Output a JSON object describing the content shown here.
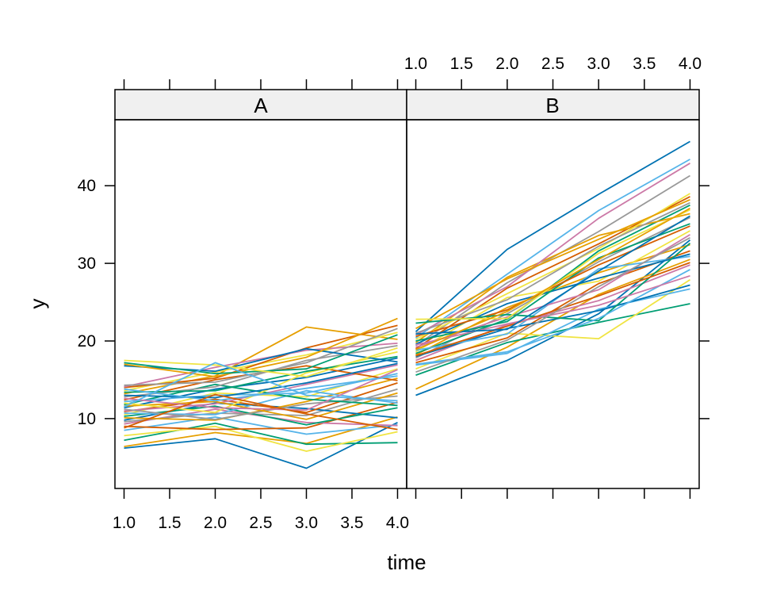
{
  "chart_data": {
    "type": "line",
    "layout": "lattice-panels",
    "xlabel": "time",
    "ylabel": "y",
    "xlim": [
      0.9,
      4.1
    ],
    "ylim": [
      1.0,
      48.5
    ],
    "x": [
      1,
      2,
      3,
      4
    ],
    "x_ticks": [
      1.0,
      1.5,
      2.0,
      2.5,
      3.0,
      3.5,
      4.0
    ],
    "x_tick_labels": [
      "1.0",
      "1.5",
      "2.0",
      "2.5",
      "3.0",
      "3.5",
      "4.0"
    ],
    "y_ticks": [
      10,
      20,
      30,
      40
    ],
    "y_tick_labels": [
      "10",
      "20",
      "30",
      "40"
    ],
    "palette": [
      "#0072B2",
      "#E69F00",
      "#009E73",
      "#F0E442",
      "#56B4E9",
      "#D55E00",
      "#CC79A7",
      "#999999"
    ],
    "panels": [
      {
        "name": "A",
        "strip_label": "A",
        "series": [
          {
            "values": [
              6.2,
              7.4,
              3.6,
              9.5
            ]
          },
          {
            "values": [
              6.4,
              8.2,
              6.8,
              10.2
            ]
          },
          {
            "values": [
              7.2,
              9.4,
              6.7,
              6.9
            ]
          },
          {
            "values": [
              7.8,
              9.0,
              5.8,
              8.3
            ]
          },
          {
            "values": [
              8.5,
              10.2,
              8.0,
              9.2
            ]
          },
          {
            "values": [
              9.0,
              8.6,
              8.8,
              12.1
            ]
          },
          {
            "values": [
              9.3,
              11.2,
              9.5,
              9.1
            ]
          },
          {
            "values": [
              9.6,
              10.7,
              10.4,
              13.8
            ]
          },
          {
            "values": [
              9.8,
              12.0,
              11.3,
              10.1
            ]
          },
          {
            "values": [
              10.1,
              9.8,
              12.2,
              15.2
            ]
          },
          {
            "values": [
              10.3,
              11.6,
              9.2,
              11.4
            ]
          },
          {
            "values": [
              10.5,
              13.3,
              12.8,
              16.4
            ]
          },
          {
            "values": [
              10.7,
              10.5,
              13.6,
              12.0
            ]
          },
          {
            "values": [
              10.9,
              12.5,
              10.8,
              14.6
            ]
          },
          {
            "values": [
              11.0,
              11.9,
              14.4,
              16.9
            ]
          },
          {
            "values": [
              11.2,
              9.9,
              11.9,
              12.9
            ]
          },
          {
            "values": [
              11.4,
              13.8,
              15.3,
              17.8
            ]
          },
          {
            "values": [
              11.6,
              12.2,
              9.9,
              13.3
            ]
          },
          {
            "values": [
              11.8,
              14.4,
              12.5,
              11.7
            ]
          },
          {
            "values": [
              12.0,
              10.8,
              15.9,
              18.6
            ]
          },
          {
            "values": [
              12.2,
              13.0,
              13.3,
              15.8
            ]
          },
          {
            "values": [
              12.4,
              15.0,
              16.8,
              14.9
            ]
          },
          {
            "values": [
              12.6,
              11.4,
              11.1,
              16.3
            ]
          },
          {
            "values": [
              12.8,
              14.1,
              17.5,
              19.4
            ]
          },
          {
            "values": [
              13.0,
              12.7,
              14.6,
              17.1
            ]
          },
          {
            "values": [
              13.2,
              15.5,
              21.8,
              20.2
            ]
          },
          {
            "values": [
              13.4,
              13.6,
              16.1,
              18.0
            ]
          },
          {
            "values": [
              13.6,
              16.0,
              18.2,
              21.1
            ]
          },
          {
            "values": [
              13.8,
              12.3,
              13.9,
              15.5
            ]
          },
          {
            "values": [
              14.0,
              15.2,
              19.1,
              22.0
            ]
          },
          {
            "values": [
              14.1,
              16.6,
              18.8,
              19.7
            ]
          },
          {
            "values": [
              14.3,
              14.7,
              17.2,
              21.6
            ]
          },
          {
            "values": [
              16.8,
              16.1,
              19.0,
              17.3
            ]
          },
          {
            "values": [
              17.0,
              15.4,
              17.9,
              22.9
            ]
          },
          {
            "values": [
              17.2,
              15.8,
              16.4,
              20.8
            ]
          },
          {
            "values": [
              17.5,
              16.9,
              15.4,
              19.1
            ]
          },
          {
            "values": [
              11.5,
              17.2,
              13.0,
              12.3
            ]
          },
          {
            "values": [
              8.8,
              13.1,
              10.6,
              8.6
            ]
          }
        ]
      },
      {
        "name": "B",
        "strip_label": "B",
        "series": [
          {
            "values": [
              13.0,
              17.5,
              23.5,
              33.0
            ]
          },
          {
            "values": [
              13.8,
              19.2,
              26.0,
              30.5
            ]
          },
          {
            "values": [
              15.6,
              19.8,
              22.4,
              24.8
            ]
          },
          {
            "values": [
              16.4,
              21.0,
              20.3,
              27.9
            ]
          },
          {
            "values": [
              16.9,
              18.4,
              24.1,
              26.7
            ]
          },
          {
            "values": [
              17.2,
              20.4,
              27.4,
              31.6
            ]
          },
          {
            "values": [
              17.5,
              22.1,
              25.2,
              29.8
            ]
          },
          {
            "values": [
              17.8,
              23.5,
              30.2,
              35.9
            ]
          },
          {
            "values": [
              18.0,
              21.6,
              23.9,
              27.2
            ]
          },
          {
            "values": [
              18.2,
              24.3,
              28.8,
              32.4
            ]
          },
          {
            "values": [
              18.4,
              22.8,
              31.6,
              37.5
            ]
          },
          {
            "values": [
              18.6,
              25.6,
              27.7,
              34.2
            ]
          },
          {
            "values": [
              18.8,
              20.9,
              29.3,
              30.9
            ]
          },
          {
            "values": [
              19.0,
              26.8,
              32.5,
              38.6
            ]
          },
          {
            "values": [
              19.2,
              23.1,
              26.6,
              33.7
            ]
          },
          {
            "values": [
              19.4,
              27.5,
              34.1,
              41.3
            ]
          },
          {
            "values": [
              19.6,
              24.8,
              28.1,
              31.2
            ]
          },
          {
            "values": [
              19.8,
              28.2,
              33.6,
              36.4
            ]
          },
          {
            "values": [
              20.0,
              22.5,
              30.7,
              35.1
            ]
          },
          {
            "values": [
              20.2,
              26.1,
              31.9,
              39.0
            ]
          },
          {
            "values": [
              20.4,
              28.6,
              36.8,
              43.4
            ]
          },
          {
            "values": [
              20.6,
              24.0,
              29.8,
              34.8
            ]
          },
          {
            "values": [
              20.8,
              27.0,
              35.8,
              42.9
            ]
          },
          {
            "values": [
              21.0,
              25.3,
              32.2,
              37.8
            ]
          },
          {
            "values": [
              21.2,
              31.8,
              38.9,
              45.7
            ]
          },
          {
            "values": [
              21.6,
              28.0,
              33.1,
              38.2
            ]
          },
          {
            "values": [
              22.3,
              23.4,
              22.6,
              32.6
            ]
          },
          {
            "values": [
              22.8,
              22.9,
              31.3,
              36.9
            ]
          },
          {
            "values": [
              17.0,
              18.6,
              22.9,
              29.2
            ]
          },
          {
            "values": [
              18.1,
              21.9,
              25.8,
              30.1
            ]
          },
          {
            "values": [
              19.5,
              22.2,
              24.6,
              28.4
            ]
          },
          {
            "values": [
              16.0,
              20.1,
              27.0,
              33.3
            ]
          },
          {
            "values": [
              20.9,
              21.5,
              29.0,
              36.1
            ]
          },
          {
            "values": [
              18.9,
              23.8,
              30.5,
              37.1
            ]
          }
        ]
      }
    ]
  }
}
